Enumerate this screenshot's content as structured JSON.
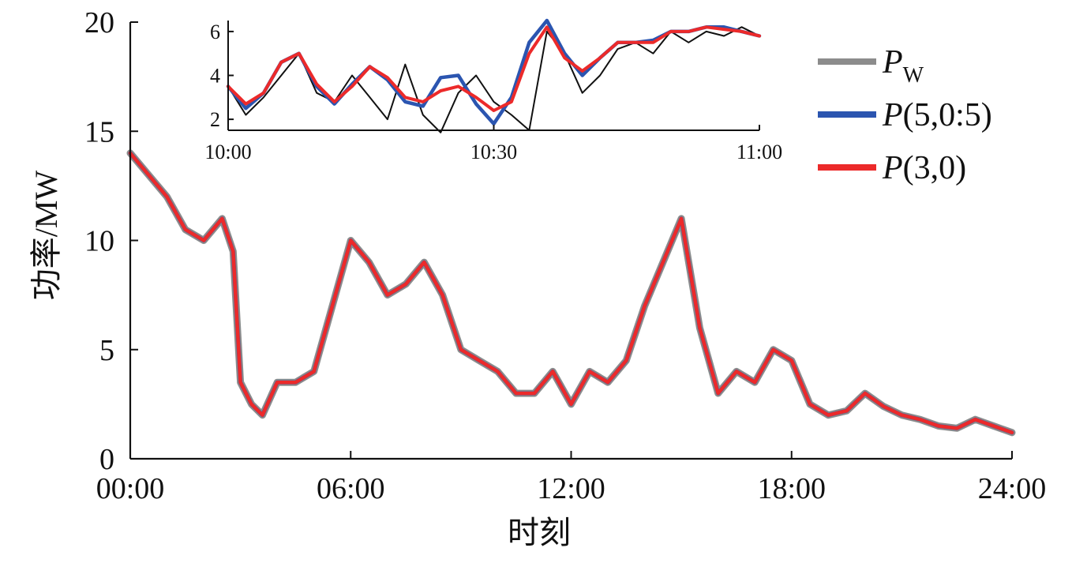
{
  "chart_data": [
    {
      "type": "line",
      "xlabel": "时刻",
      "ylabel": "功率/MW",
      "xlim": [
        0,
        24
      ],
      "ylim": [
        0,
        20
      ],
      "xticks": [
        0,
        6,
        12,
        18,
        24
      ],
      "xtick_labels": [
        "00:00",
        "06:00",
        "12:00",
        "18:00",
        "24:00"
      ],
      "yticks": [
        0,
        5,
        10,
        15,
        20
      ],
      "ytick_labels": [
        "0",
        "5",
        "10",
        "15",
        "20"
      ],
      "grid": false,
      "legend_position": "right",
      "legend": [
        {
          "label_main": "P",
          "label_sub": "W",
          "label_rest": "",
          "color": "#8c8c8c"
        },
        {
          "label_main": "P",
          "label_sub": "",
          "label_rest": "(5,0:5)",
          "color": "#2b55b0"
        },
        {
          "label_main": "P",
          "label_sub": "",
          "label_rest": "(3,0)",
          "color": "#ec2a2a"
        }
      ],
      "series": [
        {
          "name": "PW",
          "color": "#8c8c8c",
          "x": [
            0,
            0.5,
            1,
            1.5,
            2,
            2.5,
            2.8,
            3,
            3.3,
            3.6,
            4,
            4.5,
            5,
            5.5,
            6,
            6.5,
            7,
            7.5,
            8,
            8.5,
            9,
            9.5,
            10,
            10.5,
            11,
            11.5,
            12,
            12.5,
            13,
            13.5,
            14,
            14.5,
            15,
            15.5,
            16,
            16.5,
            17,
            17.5,
            18,
            18.5,
            19,
            19.5,
            20,
            20.5,
            21,
            21.5,
            22,
            22.5,
            23,
            23.5,
            24
          ],
          "y": [
            14,
            13,
            12,
            10.5,
            10,
            11,
            9.5,
            3.5,
            2.5,
            2,
            3.5,
            3.5,
            4,
            7,
            10,
            9,
            7.5,
            8,
            9,
            7.5,
            5,
            4.5,
            4,
            3,
            3,
            4,
            2.5,
            4,
            3.5,
            4.5,
            7,
            9,
            11,
            6,
            3,
            4,
            3.5,
            5,
            4.5,
            2.5,
            2,
            2.2,
            3,
            2.4,
            2,
            1.8,
            1.5,
            1.4,
            1.8,
            1.5,
            1.2
          ]
        },
        {
          "name": "P(5,0:5)",
          "color": "#2b55b0",
          "x": [
            0,
            0.5,
            1,
            1.5,
            2,
            2.5,
            2.8,
            3,
            3.3,
            3.6,
            4,
            4.5,
            5,
            5.5,
            6,
            6.5,
            7,
            7.5,
            8,
            8.5,
            9,
            9.5,
            10,
            10.5,
            11,
            11.5,
            12,
            12.5,
            13,
            13.5,
            14,
            14.5,
            15,
            15.5,
            16,
            16.5,
            17,
            17.5,
            18,
            18.5,
            19,
            19.5,
            20,
            20.5,
            21,
            21.5,
            22,
            22.5,
            23,
            23.5,
            24
          ],
          "y": [
            14,
            13,
            12,
            10.5,
            10,
            11,
            9.5,
            3.5,
            2.5,
            2,
            3.5,
            3.5,
            4,
            7,
            10,
            9,
            7.5,
            8,
            9,
            7.5,
            5,
            4.5,
            4,
            3,
            3,
            4,
            2.5,
            4,
            3.5,
            4.5,
            7,
            9,
            11,
            6,
            3,
            4,
            3.5,
            5,
            4.5,
            2.5,
            2,
            2.2,
            3,
            2.4,
            2,
            1.8,
            1.5,
            1.4,
            1.8,
            1.5,
            1.2
          ]
        },
        {
          "name": "P(3,0)",
          "color": "#ec2a2a",
          "x": [
            0,
            0.5,
            1,
            1.5,
            2,
            2.5,
            2.8,
            3,
            3.3,
            3.6,
            4,
            4.5,
            5,
            5.5,
            6,
            6.5,
            7,
            7.5,
            8,
            8.5,
            9,
            9.5,
            10,
            10.5,
            11,
            11.5,
            12,
            12.5,
            13,
            13.5,
            14,
            14.5,
            15,
            15.5,
            16,
            16.5,
            17,
            17.5,
            18,
            18.5,
            19,
            19.5,
            20,
            20.5,
            21,
            21.5,
            22,
            22.5,
            23,
            23.5,
            24
          ],
          "y": [
            14,
            13,
            12,
            10.5,
            10,
            11,
            9.5,
            3.5,
            2.5,
            2,
            3.5,
            3.5,
            4,
            7,
            10,
            9,
            7.5,
            8,
            9,
            7.5,
            5,
            4.5,
            4,
            3,
            3,
            4,
            2.5,
            4,
            3.5,
            4.5,
            7,
            9,
            11,
            6,
            3,
            4,
            3.5,
            5,
            4.5,
            2.5,
            2,
            2.2,
            3,
            2.4,
            2,
            1.8,
            1.5,
            1.4,
            1.8,
            1.5,
            1.2
          ]
        }
      ]
    },
    {
      "type": "line",
      "xlim": [
        0,
        60
      ],
      "ylim": [
        1.5,
        6.5
      ],
      "xticks": [
        0,
        30,
        60
      ],
      "xtick_labels": [
        "10:00",
        "10:30",
        "11:00"
      ],
      "yticks": [
        2,
        4,
        6
      ],
      "ytick_labels": [
        "2",
        "4",
        "6"
      ],
      "grid": false,
      "series": [
        {
          "name": "PW",
          "color": "#111111",
          "x": [
            0,
            2,
            4,
            6,
            8,
            10,
            12,
            14,
            16,
            18,
            20,
            22,
            24,
            26,
            28,
            30,
            32,
            34,
            36,
            38,
            40,
            42,
            44,
            46,
            48,
            50,
            52,
            54,
            56,
            58,
            60
          ],
          "y": [
            3.5,
            2.2,
            3,
            4,
            5,
            3.2,
            2.8,
            4,
            3,
            2,
            4.5,
            2.2,
            1.4,
            3.2,
            4,
            2.8,
            2.2,
            1.5,
            6,
            5,
            3.2,
            4,
            5.2,
            5.5,
            5,
            6,
            5.5,
            6,
            5.8,
            6.2,
            5.8
          ]
        },
        {
          "name": "P(5,0:5)",
          "color": "#2b55b0",
          "x": [
            0,
            2,
            4,
            6,
            8,
            10,
            12,
            14,
            16,
            18,
            20,
            22,
            24,
            26,
            28,
            30,
            32,
            34,
            36,
            38,
            40,
            42,
            44,
            46,
            48,
            50,
            52,
            54,
            56,
            58,
            60
          ],
          "y": [
            3.5,
            2.5,
            3.2,
            4.6,
            5,
            3.5,
            2.7,
            3.6,
            4.4,
            3.8,
            2.8,
            2.6,
            3.9,
            4,
            2.7,
            1.8,
            3,
            5.5,
            6.5,
            5,
            4,
            4.8,
            5.5,
            5.5,
            5.6,
            6,
            6,
            6.2,
            6.2,
            6,
            5.8
          ]
        },
        {
          "name": "P(3,0)",
          "color": "#ec2a2a",
          "x": [
            0,
            2,
            4,
            6,
            8,
            10,
            12,
            14,
            16,
            18,
            20,
            22,
            24,
            26,
            28,
            30,
            32,
            34,
            36,
            38,
            40,
            42,
            44,
            46,
            48,
            50,
            52,
            54,
            56,
            58,
            60
          ],
          "y": [
            3.5,
            2.7,
            3.2,
            4.6,
            5,
            3.6,
            2.8,
            3.5,
            4.4,
            3.9,
            3,
            2.8,
            3.3,
            3.5,
            3,
            2.4,
            2.8,
            5,
            6.2,
            4.8,
            4.2,
            4.8,
            5.5,
            5.5,
            5.5,
            6,
            6,
            6.2,
            6.1,
            6,
            5.8
          ]
        }
      ]
    }
  ]
}
